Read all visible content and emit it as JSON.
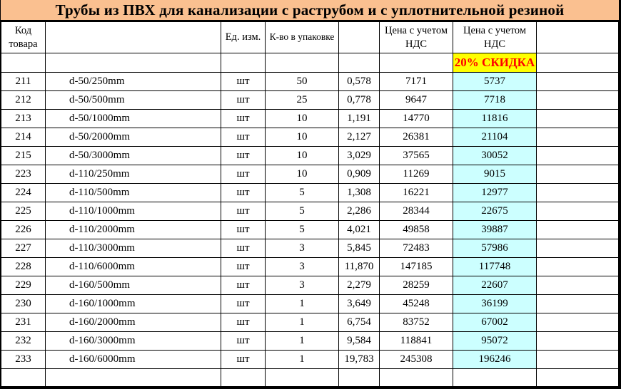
{
  "title": "Трубы из ПВХ для канализации с раструбом и с уплотнительной резиной",
  "colors": {
    "title_bg": "#FAC090",
    "discount_badge_bg": "#FFFF00",
    "discount_badge_text": "#FF0000",
    "discount_cell_bg": "#CCFFFF",
    "border": "#000000"
  },
  "table": {
    "headers": {
      "code": "Код товара",
      "name": "",
      "unit": "Ед. изм.",
      "pack": "К-во в упаковке",
      "weight": "",
      "price": "Цена с учетом НДС",
      "discount_price": "Цена с учетом НДС",
      "extra": ""
    },
    "discount_label": "20% СКИДКА",
    "rows": [
      {
        "code": "211",
        "name": "d-50/250mm",
        "unit": "шт",
        "qty": "50",
        "weight": "0,578",
        "price": "7171",
        "discount": "5737"
      },
      {
        "code": "212",
        "name": "d-50/500mm",
        "unit": "шт",
        "qty": "25",
        "weight": "0,778",
        "price": "9647",
        "discount": "7718"
      },
      {
        "code": "213",
        "name": "d-50/1000mm",
        "unit": "шт",
        "qty": "10",
        "weight": "1,191",
        "price": "14770",
        "discount": "11816"
      },
      {
        "code": "214",
        "name": "d-50/2000mm",
        "unit": "шт",
        "qty": "10",
        "weight": "2,127",
        "price": "26381",
        "discount": "21104"
      },
      {
        "code": "215",
        "name": "d-50/3000mm",
        "unit": "шт",
        "qty": "10",
        "weight": "3,029",
        "price": "37565",
        "discount": "30052"
      },
      {
        "code": "223",
        "name": "d-110/250mm",
        "unit": "шт",
        "qty": "10",
        "weight": "0,909",
        "price": "11269",
        "discount": "9015"
      },
      {
        "code": "224",
        "name": "d-110/500mm",
        "unit": "шт",
        "qty": "5",
        "weight": "1,308",
        "price": "16221",
        "discount": "12977"
      },
      {
        "code": "225",
        "name": "d-110/1000mm",
        "unit": "шт",
        "qty": "5",
        "weight": "2,286",
        "price": "28344",
        "discount": "22675"
      },
      {
        "code": "226",
        "name": "d-110/2000mm",
        "unit": "шт",
        "qty": "5",
        "weight": "4,021",
        "price": "49858",
        "discount": "39887"
      },
      {
        "code": "227",
        "name": "d-110/3000mm",
        "unit": "шт",
        "qty": "3",
        "weight": "5,845",
        "price": "72483",
        "discount": "57986"
      },
      {
        "code": "228",
        "name": "d-110/6000mm",
        "unit": "шт",
        "qty": "3",
        "weight": "11,870",
        "price": "147185",
        "discount": "117748"
      },
      {
        "code": "229",
        "name": "d-160/500mm",
        "unit": "шт",
        "qty": "3",
        "weight": "2,279",
        "price": "28259",
        "discount": "22607"
      },
      {
        "code": "230",
        "name": "d-160/1000mm",
        "unit": "шт",
        "qty": "1",
        "weight": "3,649",
        "price": "45248",
        "discount": "36199"
      },
      {
        "code": "231",
        "name": "d-160/2000mm",
        "unit": "шт",
        "qty": "1",
        "weight": "6,754",
        "price": "83752",
        "discount": "67002"
      },
      {
        "code": "232",
        "name": "d-160/3000mm",
        "unit": "шт",
        "qty": "1",
        "weight": "9,584",
        "price": "118841",
        "discount": "95072"
      },
      {
        "code": "233",
        "name": "d-160/6000mm",
        "unit": "шт",
        "qty": "1",
        "weight": "19,783",
        "price": "245308",
        "discount": "196246"
      },
      {
        "code": "",
        "name": "",
        "unit": "",
        "qty": "",
        "weight": "",
        "price": "",
        "discount": "",
        "empty": true
      }
    ]
  }
}
